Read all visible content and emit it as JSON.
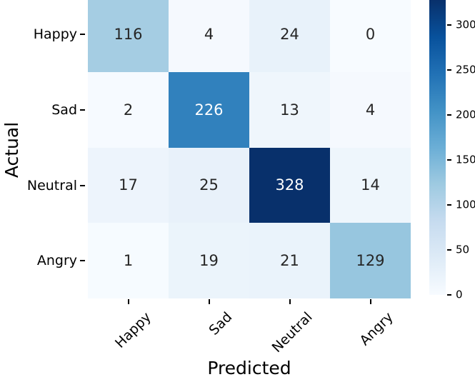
{
  "chart_data": {
    "type": "heatmap",
    "title": "",
    "xlabel": "Predicted",
    "ylabel": "Actual",
    "x_categories": [
      "Happy",
      "Sad",
      "Neutral",
      "Angry"
    ],
    "y_categories": [
      "Happy",
      "Sad",
      "Neutral",
      "Angry"
    ],
    "matrix": [
      [
        116,
        4,
        24,
        0
      ],
      [
        2,
        226,
        13,
        4
      ],
      [
        17,
        25,
        328,
        14
      ],
      [
        1,
        19,
        21,
        129
      ]
    ],
    "vmin": 0,
    "vmax": 328,
    "colormap": {
      "name": "Blues",
      "anchors": [
        {
          "pos": 0.0,
          "color": "#f7fbff"
        },
        {
          "pos": 0.125,
          "color": "#deebf7"
        },
        {
          "pos": 0.25,
          "color": "#c6dbef"
        },
        {
          "pos": 0.375,
          "color": "#9ecae1"
        },
        {
          "pos": 0.5,
          "color": "#6baed6"
        },
        {
          "pos": 0.625,
          "color": "#4292c6"
        },
        {
          "pos": 0.75,
          "color": "#2171b5"
        },
        {
          "pos": 0.875,
          "color": "#08519c"
        },
        {
          "pos": 1.0,
          "color": "#08306b"
        }
      ]
    },
    "colorbar_ticks": [
      0,
      50,
      100,
      150,
      200,
      250,
      300
    ],
    "annotation_color_dark": "#262626",
    "annotation_color_light": "#ffffff",
    "tick_color": "#000000",
    "background_color": "#ffffff",
    "legend": "colorbar-right",
    "grid": "off"
  }
}
